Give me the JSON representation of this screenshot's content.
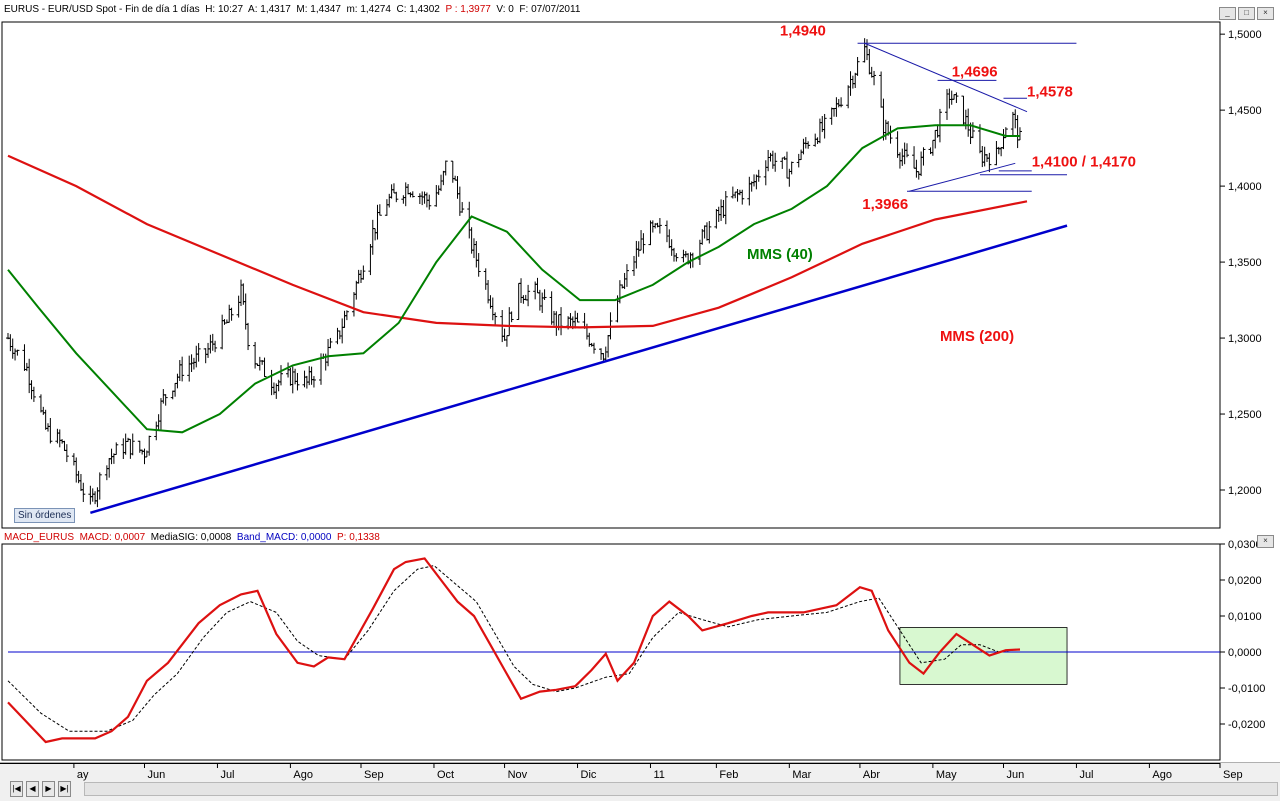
{
  "header": {
    "symbol": "EURUS",
    "title": "EUR/USD Spot - Fin de día 1 días",
    "hour": "H: 10:27",
    "open": "A: 1,4317",
    "high": "M: 1,4347",
    "low": "m: 1,4274",
    "close": "C: 1,4302",
    "pointer": "P : 1,3977",
    "volume": "V: 0",
    "date": "F: 07/07/2011"
  },
  "status_badge": "Sin órdenes",
  "window_buttons": [
    "_",
    "□",
    "×"
  ],
  "macd_header": {
    "name": "MACD_EURUS",
    "macd": "MACD: 0,0007",
    "signal": "MediaSIG: 0,0008",
    "band": "Band_MACD: 0,0000",
    "pointer": "P: 0,1338"
  },
  "nav_buttons": [
    "|◀",
    "◀",
    "▶",
    "▶|"
  ],
  "colors": {
    "price_bars": "#000000",
    "mms40": "#008000",
    "mms200": "#dd1111",
    "trendline": "#0000cc",
    "channel": "#1a1aa8",
    "annotation": "#ee1111",
    "macd_line": "#dd1111",
    "signal_line": "#000000",
    "highlight_fill": "#d8f8d0"
  },
  "chart_data": [
    {
      "type": "ohlc",
      "title": "EURUS - EUR/USD Spot",
      "ylim": [
        1.175,
        1.508
      ],
      "y_ticks": [
        "1,5000",
        "1,4500",
        "1,4000",
        "1,3500",
        "1,3000",
        "1,2500",
        "1,2000"
      ],
      "y_tick_values": [
        1.5,
        1.45,
        1.4,
        1.35,
        1.3,
        1.25,
        1.2
      ],
      "x_ticks": [
        "ay",
        "Jun",
        "Jul",
        "Ago",
        "Sep",
        "Oct",
        "Nov",
        "Dic",
        "11",
        "Feb",
        "Mar",
        "Abr",
        "May",
        "Jun",
        "Jul",
        "Ago",
        "Sep"
      ],
      "x_tick_dates": [
        "2010-05-31",
        "2010-06-30",
        "2010-07-31",
        "2010-08-31",
        "2010-09-30",
        "2010-10-31",
        "2010-11-30",
        "2010-12-31",
        "2011-01-31",
        "2011-02-28",
        "2011-03-31",
        "2011-04-30",
        "2011-05-31",
        "2011-06-30",
        "2011-07-31",
        "2011-08-31",
        "2011-09-30"
      ],
      "x_range": [
        "2010-05-03",
        "2011-09-30"
      ],
      "close_path": [
        [
          "2010-05-03",
          1.3
        ],
        [
          "2010-05-11",
          1.28
        ],
        [
          "2010-05-19",
          1.24
        ],
        [
          "2010-05-26",
          1.23
        ],
        [
          "2010-06-07",
          1.19
        ],
        [
          "2010-06-14",
          1.22
        ],
        [
          "2010-06-22",
          1.23
        ],
        [
          "2010-06-30",
          1.225
        ],
        [
          "2010-07-08",
          1.26
        ],
        [
          "2010-07-16",
          1.28
        ],
        [
          "2010-07-26",
          1.29
        ],
        [
          "2010-08-04",
          1.31
        ],
        [
          "2010-08-10",
          1.33
        ],
        [
          "2010-08-14",
          1.29
        ],
        [
          "2010-08-24",
          1.27
        ],
        [
          "2010-09-01",
          1.275
        ],
        [
          "2010-09-07",
          1.27
        ],
        [
          "2010-09-20",
          1.3
        ],
        [
          "2010-09-29",
          1.34
        ],
        [
          "2010-10-05",
          1.37
        ],
        [
          "2010-10-11",
          1.39
        ],
        [
          "2010-10-20",
          1.4
        ],
        [
          "2010-10-29",
          1.39
        ],
        [
          "2010-11-03",
          1.4
        ],
        [
          "2010-11-06",
          1.42
        ],
        [
          "2010-11-14",
          1.37
        ],
        [
          "2010-11-23",
          1.33
        ],
        [
          "2010-11-30",
          1.3
        ],
        [
          "2010-12-05",
          1.33
        ],
        [
          "2010-12-13",
          1.33
        ],
        [
          "2010-12-22",
          1.31
        ],
        [
          "2010-12-30",
          1.31
        ],
        [
          "2011-01-05",
          1.3
        ],
        [
          "2011-01-11",
          1.29
        ],
        [
          "2011-01-18",
          1.33
        ],
        [
          "2011-01-29",
          1.37
        ],
        [
          "2011-02-06",
          1.37
        ],
        [
          "2011-02-14",
          1.35
        ],
        [
          "2011-02-24",
          1.37
        ],
        [
          "2011-03-05",
          1.39
        ],
        [
          "2011-03-15",
          1.4
        ],
        [
          "2011-03-22",
          1.42
        ],
        [
          "2011-03-31",
          1.41
        ],
        [
          "2011-04-08",
          1.43
        ],
        [
          "2011-04-16",
          1.44
        ],
        [
          "2011-04-26",
          1.47
        ],
        [
          "2011-05-02",
          1.49
        ],
        [
          "2011-05-06",
          1.47
        ],
        [
          "2011-05-10",
          1.44
        ],
        [
          "2011-05-18",
          1.42
        ],
        [
          "2011-05-24",
          1.41
        ],
        [
          "2011-05-31",
          1.43
        ],
        [
          "2011-06-07",
          1.46
        ],
        [
          "2011-06-12",
          1.45
        ],
        [
          "2011-06-20",
          1.42
        ],
        [
          "2011-06-27",
          1.42
        ],
        [
          "2011-07-03",
          1.45
        ],
        [
          "2011-07-07",
          1.4302
        ]
      ],
      "mms40_path": [
        [
          "2010-05-03",
          1.345
        ],
        [
          "2010-05-16",
          1.32
        ],
        [
          "2010-06-01",
          1.29
        ],
        [
          "2010-06-16",
          1.265
        ],
        [
          "2010-07-01",
          1.24
        ],
        [
          "2010-07-16",
          1.238
        ],
        [
          "2010-08-01",
          1.25
        ],
        [
          "2010-08-16",
          1.27
        ],
        [
          "2010-09-01",
          1.282
        ],
        [
          "2010-09-16",
          1.288
        ],
        [
          "2010-10-01",
          1.29
        ],
        [
          "2010-10-16",
          1.31
        ],
        [
          "2010-11-01",
          1.35
        ],
        [
          "2010-11-16",
          1.38
        ],
        [
          "2010-12-01",
          1.37
        ],
        [
          "2010-12-16",
          1.345
        ],
        [
          "2011-01-01",
          1.325
        ],
        [
          "2011-01-16",
          1.325
        ],
        [
          "2011-02-01",
          1.335
        ],
        [
          "2011-02-16",
          1.35
        ],
        [
          "2011-03-01",
          1.36
        ],
        [
          "2011-03-16",
          1.375
        ],
        [
          "2011-04-01",
          1.385
        ],
        [
          "2011-04-16",
          1.4
        ],
        [
          "2011-05-01",
          1.425
        ],
        [
          "2011-05-16",
          1.438
        ],
        [
          "2011-06-01",
          1.44
        ],
        [
          "2011-06-16",
          1.44
        ],
        [
          "2011-07-01",
          1.433
        ],
        [
          "2011-07-07",
          1.433
        ]
      ],
      "mms200_path": [
        [
          "2010-05-03",
          1.42
        ],
        [
          "2010-06-01",
          1.4
        ],
        [
          "2010-07-01",
          1.375
        ],
        [
          "2010-08-01",
          1.355
        ],
        [
          "2010-09-01",
          1.335
        ],
        [
          "2010-10-01",
          1.317
        ],
        [
          "2010-11-01",
          1.31
        ],
        [
          "2010-12-01",
          1.308
        ],
        [
          "2011-01-01",
          1.307
        ],
        [
          "2011-02-01",
          1.308
        ],
        [
          "2011-03-01",
          1.32
        ],
        [
          "2011-04-01",
          1.34
        ],
        [
          "2011-05-01",
          1.362
        ],
        [
          "2011-06-01",
          1.378
        ],
        [
          "2011-07-10",
          1.39
        ]
      ],
      "series": [
        {
          "name": "MMS (40)",
          "key": "mms40_path"
        },
        {
          "name": "MMS (200)",
          "key": "mms200_path"
        }
      ],
      "trendlines": [
        {
          "from": [
            "2010-06-07",
            1.185
          ],
          "to": [
            "2011-07-27",
            1.374
          ],
          "color": "#0000cc",
          "width": 2.5
        },
        {
          "from": [
            "2011-05-02",
            1.494
          ],
          "to": [
            "2011-07-10",
            1.449
          ],
          "color": "#1a1aa8",
          "width": 1
        },
        {
          "from": [
            "2011-05-21",
            1.3966
          ],
          "to": [
            "2011-07-05",
            1.415
          ],
          "color": "#1a1aa8",
          "width": 1
        },
        {
          "from": [
            "2011-04-29",
            1.494
          ],
          "to": [
            "2011-07-31",
            1.494
          ],
          "color": "#1a1aa8",
          "width": 1
        },
        {
          "from": [
            "2011-06-02",
            1.4696
          ],
          "to": [
            "2011-06-27",
            1.4696
          ],
          "color": "#1a1aa8",
          "width": 1
        },
        {
          "from": [
            "2011-06-30",
            1.4578
          ],
          "to": [
            "2011-07-10",
            1.4578
          ],
          "color": "#1a1aa8",
          "width": 1
        },
        {
          "from": [
            "2011-05-20",
            1.3966
          ],
          "to": [
            "2011-07-12",
            1.3966
          ],
          "color": "#1a1aa8",
          "width": 1
        },
        {
          "from": [
            "2011-06-28",
            1.41
          ],
          "to": [
            "2011-07-12",
            1.41
          ],
          "color": "#1a1aa8",
          "width": 1
        },
        {
          "from": [
            "2011-06-20",
            1.4075
          ],
          "to": [
            "2011-07-27",
            1.4075
          ],
          "color": "#1a1aa8",
          "width": 1
        }
      ],
      "annotations": [
        {
          "text": "1,4940",
          "at": [
            "2011-03-27",
            1.499
          ],
          "color": "#ee1111"
        },
        {
          "text": "1,4696",
          "at": [
            "2011-06-08",
            1.472
          ],
          "color": "#ee1111"
        },
        {
          "text": "1,4578",
          "at": [
            "2011-07-10",
            1.459
          ],
          "color": "#ee1111"
        },
        {
          "text": "1,4100 / 1,4170",
          "at": [
            "2011-07-12",
            1.413
          ],
          "color": "#ee1111"
        },
        {
          "text": "1,3966",
          "at": [
            "2011-05-01",
            1.385
          ],
          "color": "#ee1111"
        },
        {
          "text": "MMS (40)",
          "at": [
            "2011-03-13",
            1.352
          ],
          "color": "#008000"
        },
        {
          "text": "MMS (200)",
          "at": [
            "2011-06-03",
            1.298
          ],
          "color": "#ee1111"
        }
      ]
    },
    {
      "type": "line",
      "title": "MACD_EURUS",
      "ylim": [
        -0.03,
        0.03
      ],
      "y_ticks": [
        "0,0300",
        "0,0200",
        "0,0100",
        "0,0000",
        "-0,0100",
        "-0,0200"
      ],
      "y_tick_values": [
        0.03,
        0.02,
        0.01,
        0.0,
        -0.01,
        -0.02
      ],
      "x_range": [
        "2010-05-03",
        "2011-09-30"
      ],
      "zero_line": 0.0,
      "highlight_box": {
        "from": [
          "2011-05-17",
          0.0068
        ],
        "to": [
          "2011-07-27",
          -0.009
        ]
      },
      "macd_path": [
        [
          "2010-05-03",
          -0.014
        ],
        [
          "2010-05-19",
          -0.025
        ],
        [
          "2010-05-26",
          -0.024
        ],
        [
          "2010-06-09",
          -0.024
        ],
        [
          "2010-06-16",
          -0.022
        ],
        [
          "2010-06-23",
          -0.018
        ],
        [
          "2010-07-01",
          -0.008
        ],
        [
          "2010-07-10",
          -0.003
        ],
        [
          "2010-07-23",
          0.008
        ],
        [
          "2010-08-01",
          0.013
        ],
        [
          "2010-08-10",
          0.016
        ],
        [
          "2010-08-17",
          0.017
        ],
        [
          "2010-08-25",
          0.005
        ],
        [
          "2010-09-03",
          -0.003
        ],
        [
          "2010-09-10",
          -0.004
        ],
        [
          "2010-09-16",
          -0.0015
        ],
        [
          "2010-09-23",
          -0.002
        ],
        [
          "2010-10-05",
          0.012
        ],
        [
          "2010-10-14",
          0.023
        ],
        [
          "2010-10-19",
          0.025
        ],
        [
          "2010-10-27",
          0.026
        ],
        [
          "2010-11-03",
          0.02
        ],
        [
          "2010-11-10",
          0.014
        ],
        [
          "2010-11-17",
          0.01
        ],
        [
          "2010-11-24",
          0.002
        ],
        [
          "2010-11-30",
          -0.005
        ],
        [
          "2010-12-07",
          -0.013
        ],
        [
          "2010-12-15",
          -0.011
        ],
        [
          "2010-12-22",
          -0.0105
        ],
        [
          "2010-12-30",
          -0.0095
        ],
        [
          "2011-01-06",
          -0.005
        ],
        [
          "2011-01-12",
          -0.0005
        ],
        [
          "2011-01-17",
          -0.008
        ],
        [
          "2011-01-24",
          -0.003
        ],
        [
          "2011-02-01",
          0.01
        ],
        [
          "2011-02-08",
          0.014
        ],
        [
          "2011-02-16",
          0.01
        ],
        [
          "2011-02-22",
          0.006
        ],
        [
          "2011-03-05",
          0.008
        ],
        [
          "2011-03-15",
          0.01
        ],
        [
          "2011-03-22",
          0.011
        ],
        [
          "2011-04-06",
          0.011
        ],
        [
          "2011-04-20",
          0.013
        ],
        [
          "2011-04-30",
          0.018
        ],
        [
          "2011-05-05",
          0.017
        ],
        [
          "2011-05-12",
          0.006
        ],
        [
          "2011-05-21",
          -0.003
        ],
        [
          "2011-05-27",
          -0.006
        ],
        [
          "2011-06-03",
          0.0
        ],
        [
          "2011-06-10",
          0.005
        ],
        [
          "2011-06-17",
          0.002
        ],
        [
          "2011-06-24",
          -0.001
        ],
        [
          "2011-07-01",
          0.0005
        ],
        [
          "2011-07-07",
          0.0007
        ]
      ],
      "signal_path": [
        [
          "2010-05-03",
          -0.008
        ],
        [
          "2010-05-17",
          -0.017
        ],
        [
          "2010-05-29",
          -0.022
        ],
        [
          "2010-06-14",
          -0.022
        ],
        [
          "2010-06-25",
          -0.019
        ],
        [
          "2010-07-04",
          -0.012
        ],
        [
          "2010-07-14",
          -0.006
        ],
        [
          "2010-07-25",
          0.004
        ],
        [
          "2010-08-04",
          0.011
        ],
        [
          "2010-08-14",
          0.014
        ],
        [
          "2010-08-25",
          0.011
        ],
        [
          "2010-09-03",
          0.003
        ],
        [
          "2010-09-12",
          -0.001
        ],
        [
          "2010-09-23",
          -0.002
        ],
        [
          "2010-10-03",
          0.006
        ],
        [
          "2010-10-14",
          0.017
        ],
        [
          "2010-10-24",
          0.023
        ],
        [
          "2010-10-31",
          0.024
        ],
        [
          "2010-11-09",
          0.019
        ],
        [
          "2010-11-18",
          0.014
        ],
        [
          "2010-11-26",
          0.005
        ],
        [
          "2010-12-04",
          -0.004
        ],
        [
          "2010-12-12",
          -0.009
        ],
        [
          "2010-12-22",
          -0.011
        ],
        [
          "2010-12-30",
          -0.01
        ],
        [
          "2011-01-12",
          -0.007
        ],
        [
          "2011-01-22",
          -0.006
        ],
        [
          "2011-02-01",
          0.004
        ],
        [
          "2011-02-12",
          0.011
        ],
        [
          "2011-02-22",
          0.009
        ],
        [
          "2011-03-05",
          0.007
        ],
        [
          "2011-03-18",
          0.009
        ],
        [
          "2011-04-01",
          0.01
        ],
        [
          "2011-04-16",
          0.011
        ],
        [
          "2011-04-30",
          0.014
        ],
        [
          "2011-05-08",
          0.015
        ],
        [
          "2011-05-16",
          0.007
        ],
        [
          "2011-05-26",
          -0.003
        ],
        [
          "2011-06-05",
          -0.002
        ],
        [
          "2011-06-12",
          0.002
        ],
        [
          "2011-06-20",
          0.002
        ],
        [
          "2011-06-28",
          0.0
        ],
        [
          "2011-07-07",
          0.0008
        ]
      ],
      "series": [
        {
          "name": "MACD",
          "key": "macd_path"
        },
        {
          "name": "MediaSIG",
          "key": "signal_path"
        }
      ]
    }
  ]
}
